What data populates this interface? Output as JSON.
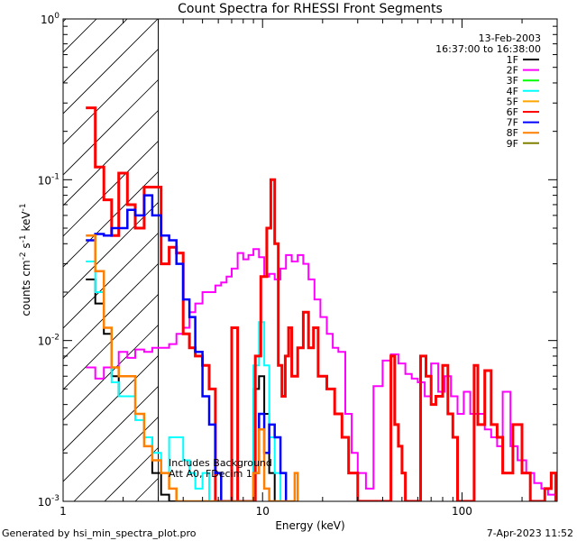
{
  "chart_data": {
    "type": "line",
    "title": "Count Spectra for RHESSI Front Segments",
    "xlabel": "Energy (keV)",
    "ylabel_main": "counts cm",
    "ylabel_sup1": "-2",
    "ylabel_mid": " s",
    "ylabel_sup2": "-1",
    "ylabel_mid2": " keV",
    "ylabel_sup3": "-1",
    "x_scale": "log",
    "y_scale": "log",
    "xlim": [
      1,
      300
    ],
    "ylim": [
      0.001,
      1
    ],
    "x_ticks": [
      {
        "value": 1,
        "label": "1"
      },
      {
        "value": 10,
        "label": "10"
      },
      {
        "value": 100,
        "label": "100"
      }
    ],
    "y_ticks": [
      {
        "value": 0.001,
        "base": "10",
        "exp": "-3"
      },
      {
        "value": 0.01,
        "base": "10",
        "exp": "-2"
      },
      {
        "value": 0.1,
        "base": "10",
        "exp": "-1"
      },
      {
        "value": 1,
        "base": "10",
        "exp": "0"
      }
    ],
    "date": "13-Feb-2003",
    "time_range": "16:37:00 to 16:38:00",
    "attenuator_limit_kev": 3,
    "annotations": [
      "Includes Background",
      "Att A0, FDecim 1"
    ],
    "legend_position": "top-right",
    "series": [
      {
        "name": "1F",
        "color": "#000000",
        "width": 2.0,
        "points": [
          [
            1.3,
            0.024
          ],
          [
            1.45,
            0.017
          ],
          [
            1.6,
            0.011
          ],
          [
            1.75,
            0.006
          ],
          [
            1.9,
            0.0045
          ],
          [
            2.1,
            0.0045
          ],
          [
            2.3,
            0.0035
          ],
          [
            2.55,
            0.0025
          ],
          [
            2.8,
            0.0015
          ],
          [
            3.1,
            0.0011
          ],
          [
            3.4,
            0.001
          ],
          [
            8.5,
            0.001
          ],
          [
            9.0,
            0.005
          ],
          [
            9.6,
            0.006
          ],
          [
            10.2,
            0.0035
          ],
          [
            10.8,
            0.0015
          ],
          [
            11.5,
            0.001
          ]
        ]
      },
      {
        "name": "2F",
        "color": "#ff00ff",
        "width": 2.0,
        "points": [
          [
            1.3,
            0.0068
          ],
          [
            1.45,
            0.0058
          ],
          [
            1.6,
            0.0068
          ],
          [
            1.75,
            0.0068
          ],
          [
            1.9,
            0.0085
          ],
          [
            2.1,
            0.0078
          ],
          [
            2.3,
            0.0088
          ],
          [
            2.55,
            0.0085
          ],
          [
            2.8,
            0.009
          ],
          [
            3.1,
            0.009
          ],
          [
            3.4,
            0.0095
          ],
          [
            3.7,
            0.011
          ],
          [
            4.0,
            0.012
          ],
          [
            4.3,
            0.015
          ],
          [
            4.6,
            0.017
          ],
          [
            5.0,
            0.02
          ],
          [
            5.4,
            0.02
          ],
          [
            5.8,
            0.022
          ],
          [
            6.2,
            0.023
          ],
          [
            6.6,
            0.025
          ],
          [
            7.0,
            0.028
          ],
          [
            7.5,
            0.035
          ],
          [
            8.0,
            0.032
          ],
          [
            8.5,
            0.034
          ],
          [
            9.0,
            0.037
          ],
          [
            9.6,
            0.033
          ],
          [
            10.2,
            0.025
          ],
          [
            10.8,
            0.026
          ],
          [
            11.5,
            0.024
          ],
          [
            12.3,
            0.028
          ],
          [
            13.1,
            0.034
          ],
          [
            14.0,
            0.031
          ],
          [
            15.0,
            0.034
          ],
          [
            16.0,
            0.03
          ],
          [
            17.0,
            0.024
          ],
          [
            18.2,
            0.018
          ],
          [
            19.5,
            0.014
          ],
          [
            21.0,
            0.011
          ],
          [
            22.5,
            0.009
          ],
          [
            24.0,
            0.0085
          ],
          [
            26.0,
            0.0035
          ],
          [
            28.0,
            0.002
          ],
          [
            30.0,
            0.0015
          ],
          [
            33.0,
            0.0012
          ],
          [
            36.0,
            0.0052
          ],
          [
            40.0,
            0.0075
          ],
          [
            44.0,
            0.0082
          ],
          [
            48.0,
            0.0072
          ],
          [
            52.0,
            0.0062
          ],
          [
            56.0,
            0.0058
          ],
          [
            60.0,
            0.0055
          ],
          [
            65.0,
            0.0045
          ],
          [
            70.0,
            0.0072
          ],
          [
            76.0,
            0.0048
          ],
          [
            82.0,
            0.006
          ],
          [
            88.0,
            0.0045
          ],
          [
            95.0,
            0.0035
          ],
          [
            102.0,
            0.0048
          ],
          [
            110.0,
            0.0035
          ],
          [
            120.0,
            0.0035
          ],
          [
            130.0,
            0.0028
          ],
          [
            140.0,
            0.0025
          ],
          [
            150.0,
            0.0022
          ],
          [
            160.0,
            0.0048
          ],
          [
            175.0,
            0.0022
          ],
          [
            190.0,
            0.0018
          ],
          [
            210.0,
            0.0015
          ],
          [
            230.0,
            0.0013
          ],
          [
            250.0,
            0.0012
          ],
          [
            270.0,
            0.0011
          ],
          [
            295.0,
            0.001
          ]
        ]
      },
      {
        "name": "3F",
        "color": "#00ff00",
        "width": 2.0,
        "points": []
      },
      {
        "name": "4F",
        "color": "#00ffff",
        "width": 2.0,
        "points": [
          [
            1.3,
            0.031
          ],
          [
            1.45,
            0.02
          ],
          [
            1.6,
            0.012
          ],
          [
            1.75,
            0.0055
          ],
          [
            1.9,
            0.0045
          ],
          [
            2.1,
            0.0045
          ],
          [
            2.3,
            0.0032
          ],
          [
            2.55,
            0.0025
          ],
          [
            2.8,
            0.002
          ],
          [
            3.1,
            0.0015
          ],
          [
            3.4,
            0.0025
          ],
          [
            3.7,
            0.0025
          ],
          [
            4.0,
            0.0018
          ],
          [
            4.3,
            0.0015
          ],
          [
            4.6,
            0.0012
          ],
          [
            5.0,
            0.0015
          ],
          [
            5.4,
            0.001
          ],
          [
            8.5,
            0.001
          ],
          [
            9.0,
            0.007
          ],
          [
            9.6,
            0.013
          ],
          [
            10.2,
            0.007
          ],
          [
            10.8,
            0.0025
          ],
          [
            11.5,
            0.0015
          ],
          [
            12.3,
            0.001
          ]
        ]
      },
      {
        "name": "5F",
        "color": "#ffa500",
        "width": 2.0,
        "points": []
      },
      {
        "name": "6F",
        "color": "#ff0000",
        "width": 3.0,
        "points": [
          [
            1.3,
            0.28
          ],
          [
            1.45,
            0.12
          ],
          [
            1.6,
            0.075
          ],
          [
            1.75,
            0.045
          ],
          [
            1.9,
            0.11
          ],
          [
            2.1,
            0.07
          ],
          [
            2.3,
            0.05
          ],
          [
            2.55,
            0.09
          ],
          [
            2.8,
            0.09
          ],
          [
            3.1,
            0.03
          ],
          [
            3.4,
            0.038
          ],
          [
            3.7,
            0.035
          ],
          [
            4.0,
            0.011
          ],
          [
            4.3,
            0.009
          ],
          [
            4.6,
            0.008
          ],
          [
            5.0,
            0.007
          ],
          [
            5.4,
            0.005
          ],
          [
            5.8,
            0.001
          ],
          [
            6.6,
            0.001
          ],
          [
            7.0,
            0.012
          ],
          [
            7.5,
            0.001
          ],
          [
            8.8,
            0.001
          ],
          [
            9.2,
            0.008
          ],
          [
            9.8,
            0.025
          ],
          [
            10.5,
            0.05
          ],
          [
            11.0,
            0.1
          ],
          [
            11.5,
            0.04
          ],
          [
            12.0,
            0.007
          ],
          [
            12.5,
            0.0045
          ],
          [
            13.0,
            0.008
          ],
          [
            13.5,
            0.012
          ],
          [
            14.0,
            0.006
          ],
          [
            15.0,
            0.009
          ],
          [
            16.0,
            0.015
          ],
          [
            17.0,
            0.009
          ],
          [
            18.0,
            0.012
          ],
          [
            19.0,
            0.006
          ],
          [
            21.0,
            0.005
          ],
          [
            23.0,
            0.0035
          ],
          [
            25.0,
            0.0025
          ],
          [
            27.0,
            0.0015
          ],
          [
            30.0,
            0.001
          ],
          [
            42.0,
            0.001
          ],
          [
            44.0,
            0.008
          ],
          [
            46.0,
            0.003
          ],
          [
            48.0,
            0.0022
          ],
          [
            50.0,
            0.0015
          ],
          [
            52.0,
            0.001
          ],
          [
            58.0,
            0.001
          ],
          [
            62.0,
            0.008
          ],
          [
            66.0,
            0.006
          ],
          [
            70.0,
            0.004
          ],
          [
            74.0,
            0.0045
          ],
          [
            80.0,
            0.007
          ],
          [
            85.0,
            0.0035
          ],
          [
            90.0,
            0.0025
          ],
          [
            95.0,
            0.001
          ],
          [
            110.0,
            0.001
          ],
          [
            115.0,
            0.007
          ],
          [
            120.0,
            0.003
          ],
          [
            130.0,
            0.0065
          ],
          [
            140.0,
            0.003
          ],
          [
            150.0,
            0.0025
          ],
          [
            160.0,
            0.0015
          ],
          [
            180.0,
            0.003
          ],
          [
            200.0,
            0.0015
          ],
          [
            220.0,
            0.001
          ],
          [
            240.0,
            0.001
          ],
          [
            260.0,
            0.0012
          ],
          [
            280.0,
            0.0015
          ],
          [
            295.0,
            0.001
          ]
        ]
      },
      {
        "name": "7F",
        "color": "#0000ff",
        "width": 2.5,
        "points": [
          [
            1.3,
            0.042
          ],
          [
            1.45,
            0.046
          ],
          [
            1.6,
            0.045
          ],
          [
            1.75,
            0.05
          ],
          [
            1.9,
            0.05
          ],
          [
            2.1,
            0.065
          ],
          [
            2.3,
            0.06
          ],
          [
            2.55,
            0.08
          ],
          [
            2.8,
            0.06
          ],
          [
            3.1,
            0.045
          ],
          [
            3.4,
            0.042
          ],
          [
            3.7,
            0.03
          ],
          [
            4.0,
            0.018
          ],
          [
            4.3,
            0.014
          ],
          [
            4.6,
            0.0085
          ],
          [
            5.0,
            0.0045
          ],
          [
            5.4,
            0.003
          ],
          [
            5.8,
            0.0015
          ],
          [
            6.2,
            0.001
          ],
          [
            8.5,
            0.001
          ],
          [
            9.0,
            0.0015
          ],
          [
            9.6,
            0.0035
          ],
          [
            10.2,
            0.002
          ],
          [
            10.8,
            0.003
          ],
          [
            11.5,
            0.0025
          ],
          [
            12.3,
            0.0015
          ],
          [
            13.1,
            0.001
          ]
        ]
      },
      {
        "name": "8F",
        "color": "#ff8000",
        "width": 2.5,
        "points": [
          [
            1.3,
            0.045
          ],
          [
            1.45,
            0.027
          ],
          [
            1.6,
            0.012
          ],
          [
            1.75,
            0.0068
          ],
          [
            1.9,
            0.006
          ],
          [
            2.1,
            0.006
          ],
          [
            2.3,
            0.0035
          ],
          [
            2.55,
            0.0022
          ],
          [
            2.8,
            0.0018
          ],
          [
            3.1,
            0.0015
          ],
          [
            3.4,
            0.0012
          ],
          [
            3.7,
            0.001
          ],
          [
            8.5,
            0.001
          ],
          [
            9.0,
            0.0015
          ],
          [
            9.6,
            0.0028
          ],
          [
            10.2,
            0.0012
          ],
          [
            10.8,
            0.001
          ],
          [
            14.0,
            0.001
          ],
          [
            14.5,
            0.0015
          ],
          [
            15.0,
            0.001
          ]
        ]
      },
      {
        "name": "9F",
        "color": "#808000",
        "width": 2.0,
        "points": []
      }
    ]
  },
  "footer": {
    "generated_by": "Generated by hsi_min_spectra_plot.pro",
    "timestamp": "7-Apr-2023 11:52"
  }
}
